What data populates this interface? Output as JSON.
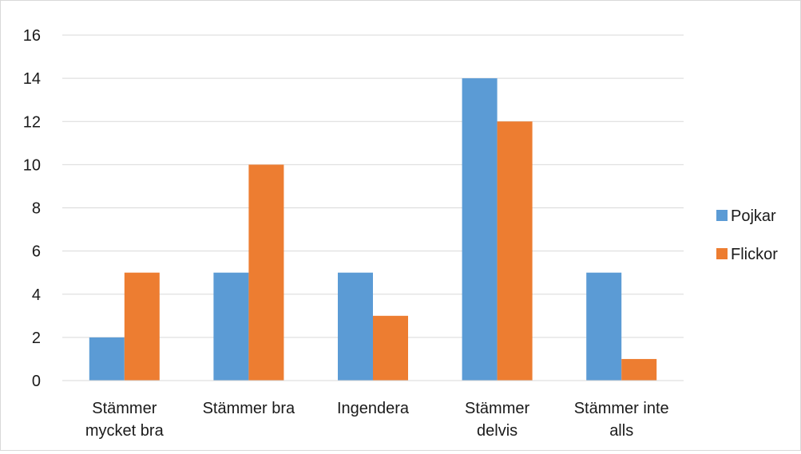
{
  "chart_data": {
    "type": "bar",
    "title": "",
    "xlabel": "",
    "ylabel": "",
    "categories": [
      [
        "Stämmer",
        "mycket bra"
      ],
      [
        "Stämmer bra"
      ],
      [
        "Ingendera"
      ],
      [
        "Stämmer",
        "delvis"
      ],
      [
        "Stämmer inte",
        "alls"
      ]
    ],
    "series": [
      {
        "name": "Pojkar",
        "color": "#5b9bd5",
        "values": [
          2,
          5,
          5,
          14,
          5
        ]
      },
      {
        "name": "Flickor",
        "color": "#ed7d31",
        "values": [
          5,
          10,
          3,
          12,
          1
        ]
      }
    ],
    "ylim": [
      0,
      16
    ],
    "yticks": [
      0,
      2,
      4,
      6,
      8,
      10,
      12,
      14,
      16
    ],
    "grid": true,
    "legend_position": "right"
  }
}
